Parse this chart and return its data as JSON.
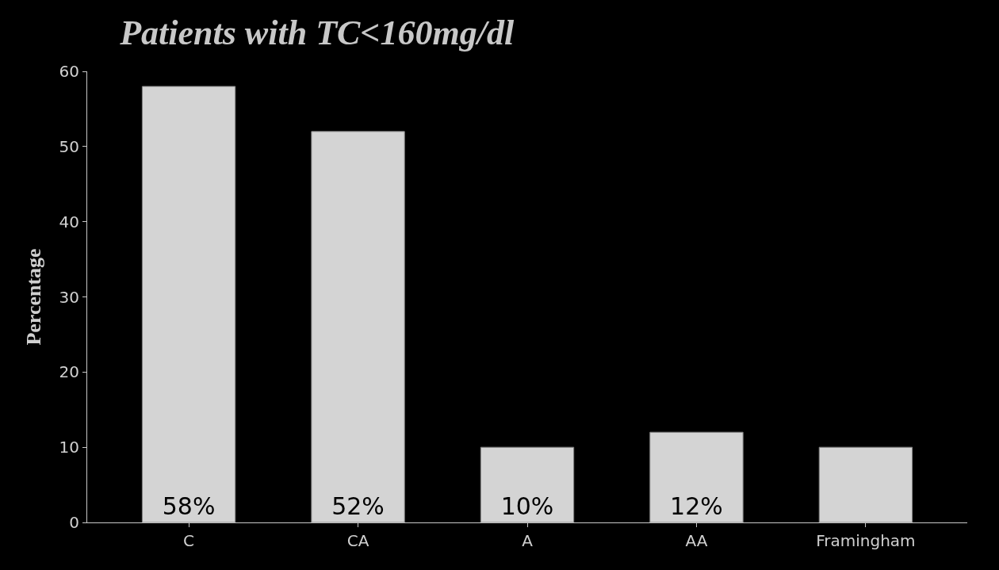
{
  "chart_data": {
    "type": "bar",
    "title": "Patients with TC<160mg/dl",
    "ylabel": "Percentage",
    "categories": [
      "C",
      "CA",
      "A",
      "AA",
      "Framingham"
    ],
    "values": [
      58,
      52,
      10,
      12,
      10
    ],
    "value_labels": [
      "58%",
      "52%",
      "10%",
      "12%",
      null
    ],
    "color": "#d4d4d4",
    "ylim": [
      0,
      60
    ],
    "yticks": [
      0,
      10,
      20,
      30,
      40,
      50,
      60
    ],
    "grid": false,
    "legend": false
  }
}
